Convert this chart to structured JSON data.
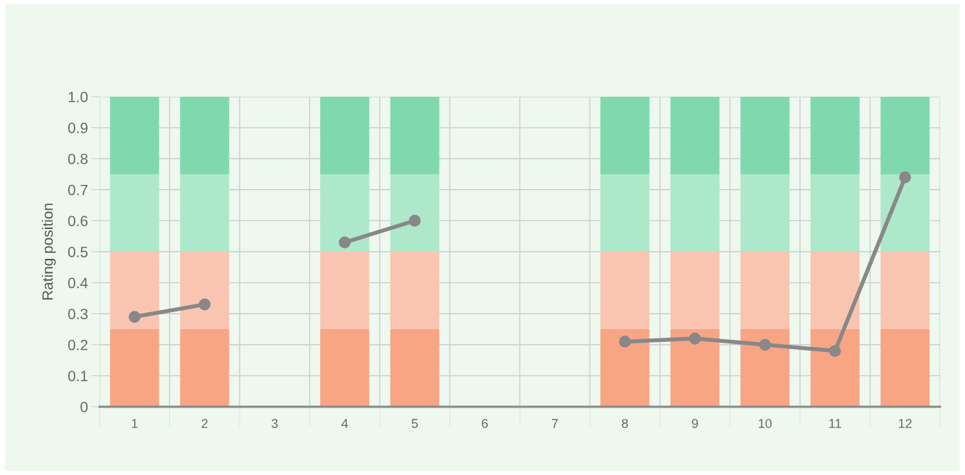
{
  "chart_data": {
    "type": "bar",
    "stacked": true,
    "ylabel": "Rating position",
    "categories": [
      "1",
      "2",
      "3",
      "4",
      "5",
      "6",
      "7",
      "8",
      "9",
      "10",
      "11",
      "12"
    ],
    "series": [
      {
        "color": "#f8a584",
        "values": [
          0.25,
          0.25,
          null,
          0.25,
          0.25,
          null,
          null,
          0.25,
          0.25,
          0.25,
          0.25,
          0.25
        ]
      },
      {
        "color": "#f9c5b1",
        "values": [
          0.25,
          0.25,
          null,
          0.25,
          0.25,
          null,
          null,
          0.25,
          0.25,
          0.25,
          0.25,
          0.25
        ]
      },
      {
        "color": "#aee8cb",
        "values": [
          0.25,
          0.25,
          null,
          0.25,
          0.25,
          null,
          null,
          0.25,
          0.25,
          0.25,
          0.25,
          0.25
        ]
      },
      {
        "color": "#80d9ae",
        "values": [
          0.25,
          0.25,
          null,
          0.25,
          0.25,
          null,
          null,
          0.25,
          0.25,
          0.25,
          0.25,
          0.25
        ]
      },
      {
        "type": "line",
        "color": "#888888",
        "marker": "circle",
        "values": [
          0.29,
          0.33,
          null,
          0.53,
          0.6,
          null,
          null,
          0.21,
          0.22,
          0.2,
          0.18,
          0.74
        ]
      }
    ],
    "ylim": [
      0,
      1.0
    ],
    "yticks": [
      0,
      {
        "value": 0.1,
        "label": "0.1"
      },
      {
        "value": 0.2,
        "label": "0.2"
      },
      {
        "value": 0.3,
        "label": "0.3"
      },
      {
        "value": 0.4,
        "label": "0.4"
      },
      {
        "value": 0.5,
        "label": "0.5"
      },
      {
        "value": 0.6,
        "label": "0.6"
      },
      {
        "value": 0.7,
        "label": "0.7"
      },
      {
        "value": 0.8,
        "label": "0.8"
      },
      {
        "value": 0.9,
        "label": "0.9"
      },
      {
        "value": 1.0,
        "label": "1.0"
      }
    ],
    "grid": true
  }
}
